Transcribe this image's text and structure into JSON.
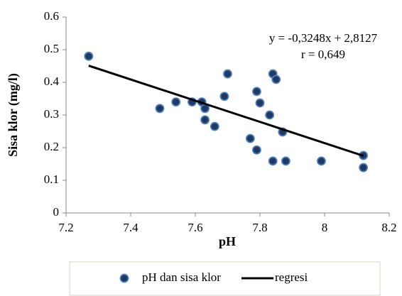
{
  "chart_data": {
    "type": "scatter",
    "x_label": "pH",
    "y_label": "Sisa klor (mg/l)",
    "annotations": [
      "y = -0,3248x + 2,8127",
      "r = 0,649"
    ],
    "xlim": [
      7.2,
      8.2
    ],
    "xticks": [
      7.2,
      7.4,
      7.6,
      7.8,
      8,
      8.2
    ],
    "ylim": [
      0,
      0.6
    ],
    "yticks": [
      0,
      0.1,
      0.2,
      0.3,
      0.4,
      0.5,
      0.6
    ],
    "grid": false,
    "legend": "bottom",
    "series": [
      {
        "name": "pH dan sisa klor",
        "mode": "markers",
        "color": "#1f3864",
        "x": [
          7.27,
          7.49,
          7.54,
          7.59,
          7.62,
          7.63,
          7.63,
          7.66,
          7.69,
          7.7,
          7.77,
          7.79,
          7.79,
          7.8,
          7.83,
          7.84,
          7.85,
          7.84,
          7.87,
          7.88,
          7.99,
          8.12,
          8.12
        ],
        "values": [
          0.48,
          0.32,
          0.34,
          0.34,
          0.34,
          0.32,
          0.285,
          0.265,
          0.357,
          0.426,
          0.228,
          0.372,
          0.193,
          0.337,
          0.3,
          0.426,
          0.409,
          0.159,
          0.248,
          0.159,
          0.159,
          0.176,
          0.139
        ]
      },
      {
        "name": "regresi",
        "mode": "line",
        "color": "#000000",
        "x": [
          7.27,
          8.12
        ],
        "values": [
          0.451,
          0.175
        ]
      }
    ]
  }
}
